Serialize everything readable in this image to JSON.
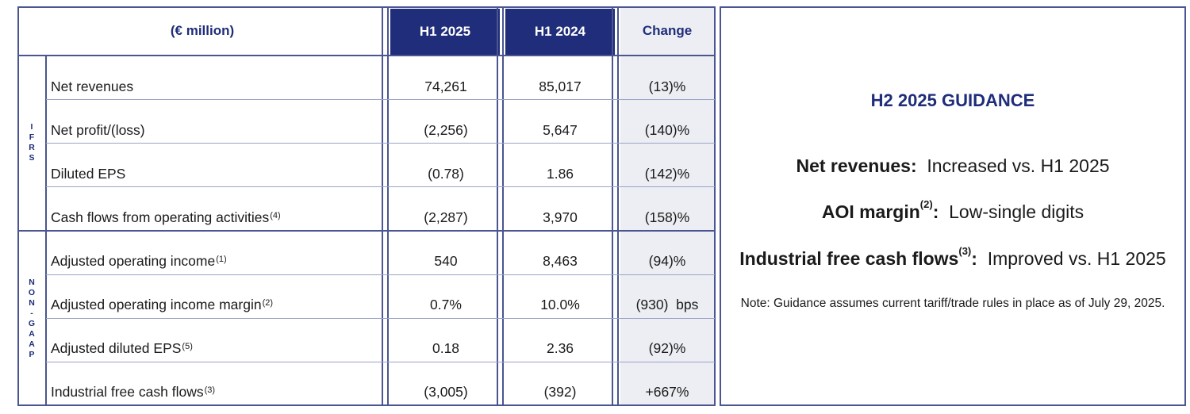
{
  "table": {
    "header": {
      "unit": "(€ million)",
      "col1": "H1 2025",
      "col2": "H1 2024",
      "col3": "Change"
    },
    "groups": [
      {
        "label_letters": [
          "I",
          "F",
          "R",
          "S"
        ]
      },
      {
        "label_letters": [
          "N",
          "O",
          "N",
          "-",
          "G",
          "A",
          "A",
          "P"
        ]
      }
    ],
    "rows": [
      {
        "label": "Net revenues",
        "note": "",
        "h1_2025": "74,261",
        "h1_2024": "85,017",
        "change": "(13)%"
      },
      {
        "label": "Net profit/(loss)",
        "note": "",
        "h1_2025": "(2,256)",
        "h1_2024": "5,647",
        "change": "(140)%"
      },
      {
        "label": "Diluted EPS",
        "note": "",
        "h1_2025": "(0.78)",
        "h1_2024": "1.86",
        "change": "(142)%"
      },
      {
        "label": "Cash flows from operating activities",
        "note": "(4)",
        "h1_2025": "(2,287)",
        "h1_2024": "3,970",
        "change": "(158)%"
      },
      {
        "label": "Adjusted operating income",
        "note": "(1)",
        "h1_2025": "540",
        "h1_2024": "8,463",
        "change": "(94)%"
      },
      {
        "label": "Adjusted operating income margin",
        "note": "(2)",
        "h1_2025": "0.7%",
        "h1_2024": "10.0%",
        "change": "(930)  bps"
      },
      {
        "label": "Adjusted diluted EPS",
        "note": "(5)",
        "h1_2025": "0.18",
        "h1_2024": "2.36",
        "change": "(92)%"
      },
      {
        "label": "Industrial free cash flows",
        "note": "(3)",
        "h1_2025": "(3,005)",
        "h1_2024": "(392)",
        "change": "+667%"
      }
    ]
  },
  "guidance": {
    "title": "H2 2025 GUIDANCE",
    "items": [
      {
        "key": "Net revenues",
        "note": "",
        "value": "Increased vs. H1 2025"
      },
      {
        "key": "AOI margin",
        "note": "(2)",
        "value": "Low-single digits"
      },
      {
        "key": "Industrial free cash flows",
        "note": "(3)",
        "value": "Improved vs. H1 2025"
      }
    ],
    "footnote": "Note: Guidance assumes current tariff/trade rules in place as of July 29, 2025."
  }
}
